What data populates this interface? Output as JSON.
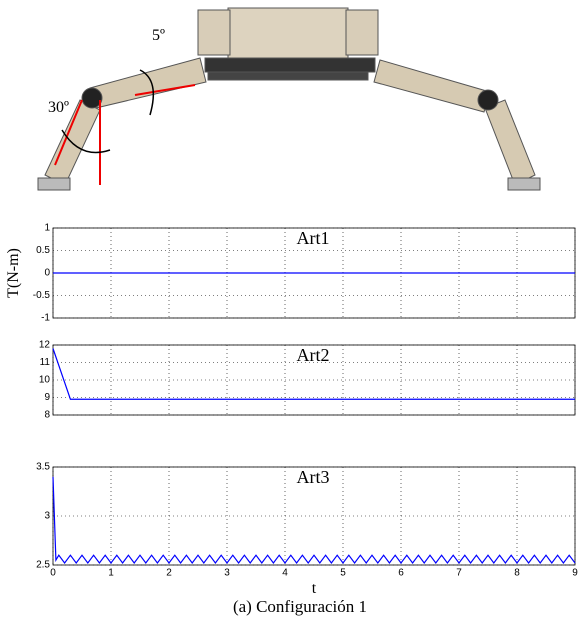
{
  "figure": {
    "annotations": [
      "5º",
      "30º"
    ],
    "caption": "(a) Configuración 1"
  },
  "chart_data": [
    {
      "type": "line",
      "title": "Art1",
      "ylabel": "T(N-m)",
      "xlim": [
        0,
        9
      ],
      "ylim": [
        -1,
        1
      ],
      "xticks": [
        0,
        1,
        2,
        3,
        4,
        5,
        6,
        7,
        8,
        9
      ],
      "yticks": [
        -1,
        -0.5,
        0,
        0.5,
        1
      ],
      "xtick_labels": false,
      "grid": true,
      "series": [
        {
          "color": "#0000ff",
          "x": [
            0,
            9
          ],
          "values": [
            0,
            0
          ]
        }
      ]
    },
    {
      "type": "line",
      "title": "Art2",
      "xlim": [
        0,
        9
      ],
      "ylim": [
        8,
        12
      ],
      "xticks": [
        0,
        1,
        2,
        3,
        4,
        5,
        6,
        7,
        8,
        9
      ],
      "yticks": [
        8,
        9,
        10,
        11,
        12
      ],
      "xtick_labels": false,
      "grid": true,
      "series": [
        {
          "color": "#0000ff",
          "x": [
            0,
            0.3,
            9
          ],
          "values": [
            11.8,
            8.9,
            8.9
          ]
        }
      ]
    },
    {
      "type": "line",
      "title": "Art3",
      "xlabel": "t",
      "xlim": [
        0,
        9
      ],
      "ylim": [
        2.5,
        3.5
      ],
      "xticks": [
        0,
        1,
        2,
        3,
        4,
        5,
        6,
        7,
        8,
        9
      ],
      "yticks": [
        2.5,
        3,
        3.5
      ],
      "xtick_labels": true,
      "grid": true,
      "series": [
        {
          "color": "#0000ff",
          "x": [
            0,
            0.05,
            0.1,
            0.2,
            0.3,
            0.4,
            0.5,
            0.6,
            0.7,
            0.8,
            0.9,
            1,
            1.1,
            1.2,
            1.3,
            1.4,
            1.5,
            1.6,
            1.7,
            1.8,
            1.9,
            2,
            2.1,
            2.2,
            2.3,
            2.4,
            2.5,
            2.6,
            2.7,
            2.8,
            2.9,
            3,
            3.1,
            3.2,
            3.3,
            3.4,
            3.5,
            3.6,
            3.7,
            3.8,
            3.9,
            4,
            4.1,
            4.2,
            4.3,
            4.4,
            4.5,
            4.6,
            4.7,
            4.8,
            4.9,
            5,
            5.1,
            5.2,
            5.3,
            5.4,
            5.5,
            5.6,
            5.7,
            5.8,
            5.9,
            6,
            6.1,
            6.2,
            6.3,
            6.4,
            6.5,
            6.6,
            6.7,
            6.8,
            6.9,
            7,
            7.1,
            7.2,
            7.3,
            7.4,
            7.5,
            7.6,
            7.7,
            7.8,
            7.9,
            8,
            8.1,
            8.2,
            8.3,
            8.4,
            8.5,
            8.6,
            8.7,
            8.8,
            8.9,
            9
          ],
          "values": [
            3.4,
            2.55,
            2.6,
            2.52,
            2.6,
            2.52,
            2.6,
            2.52,
            2.6,
            2.52,
            2.6,
            2.52,
            2.6,
            2.52,
            2.6,
            2.52,
            2.6,
            2.52,
            2.6,
            2.52,
            2.6,
            2.52,
            2.6,
            2.52,
            2.6,
            2.52,
            2.6,
            2.52,
            2.6,
            2.52,
            2.6,
            2.52,
            2.6,
            2.52,
            2.6,
            2.52,
            2.6,
            2.52,
            2.6,
            2.52,
            2.6,
            2.52,
            2.6,
            2.52,
            2.6,
            2.52,
            2.6,
            2.52,
            2.6,
            2.52,
            2.6,
            2.52,
            2.6,
            2.52,
            2.6,
            2.52,
            2.6,
            2.52,
            2.6,
            2.52,
            2.6,
            2.52,
            2.6,
            2.52,
            2.6,
            2.52,
            2.6,
            2.52,
            2.6,
            2.52,
            2.6,
            2.52,
            2.6,
            2.52,
            2.6,
            2.52,
            2.6,
            2.52,
            2.6,
            2.52,
            2.6,
            2.52,
            2.6,
            2.52,
            2.6,
            2.52,
            2.6,
            2.52,
            2.6,
            2.52,
            2.6,
            2.52
          ]
        }
      ]
    }
  ]
}
